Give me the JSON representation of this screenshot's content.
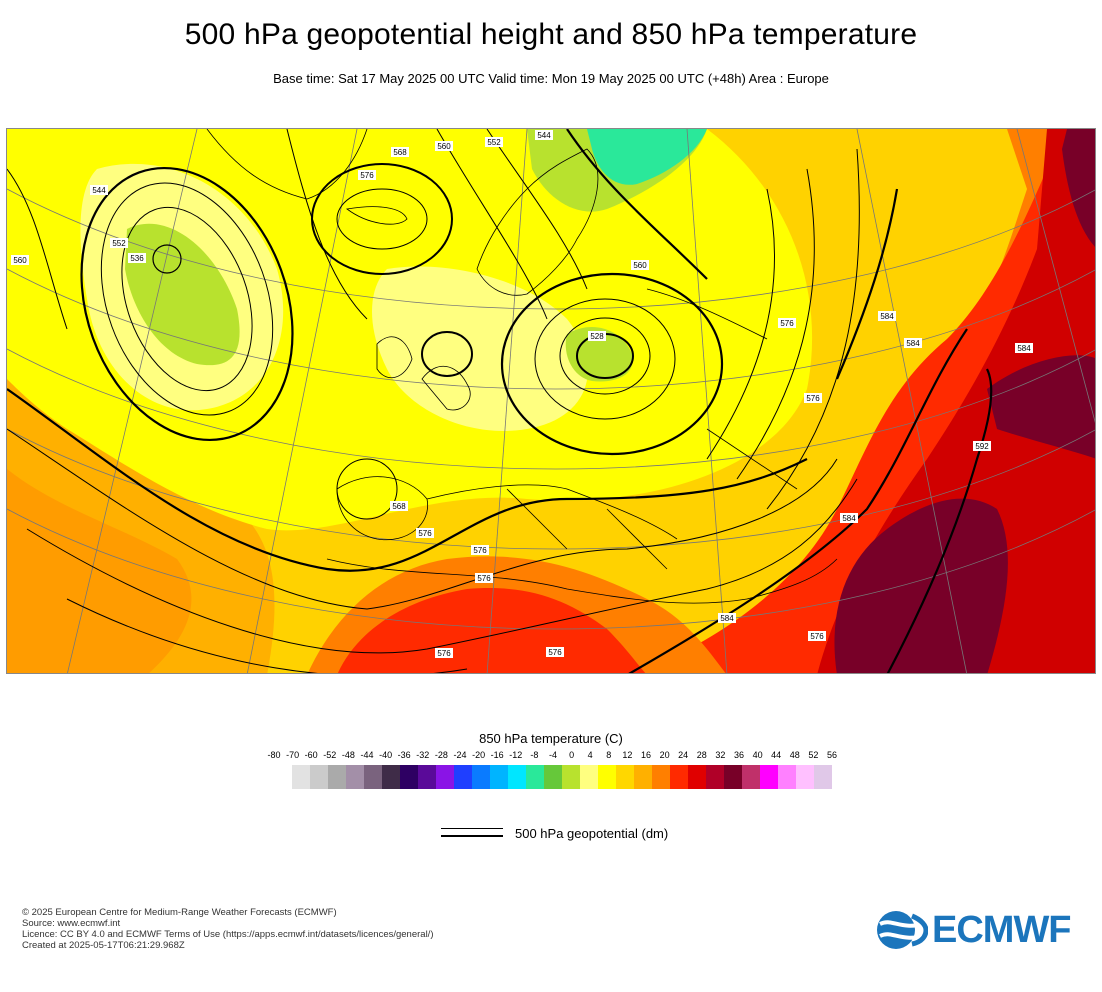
{
  "title": "500 hPa geopotential height and 850 hPa temperature",
  "subtitle": "Base time: Sat 17 May 2025 00 UTC Valid time: Mon 19 May 2025 00 UTC (+48h) Area : Europe",
  "colorbar": {
    "title": "850 hPa temperature (C)",
    "ticks": [
      "-80",
      "-70",
      "-60",
      "-52",
      "-48",
      "-44",
      "-40",
      "-36",
      "-32",
      "-28",
      "-24",
      "-20",
      "-16",
      "-12",
      "-8",
      "-4",
      "0",
      "4",
      "8",
      "12",
      "16",
      "20",
      "24",
      "28",
      "32",
      "36",
      "40",
      "44",
      "48",
      "52",
      "56"
    ],
    "colors": [
      "#e2e2e2",
      "#cbcbcb",
      "#aaaaaa",
      "#a38fa8",
      "#7a637e",
      "#3f2c48",
      "#2e0063",
      "#5a0a99",
      "#8a14e6",
      "#1f3fff",
      "#0a7bff",
      "#00b4ff",
      "#00e6ff",
      "#2ae89a",
      "#66c83a",
      "#b8e22e",
      "#ffff80",
      "#ffff00",
      "#ffd700",
      "#ffb000",
      "#ff7f00",
      "#ff2a00",
      "#e00000",
      "#b00028",
      "#780028",
      "#c0306a",
      "#ff00ff",
      "#ff80ff",
      "#ffc0ff",
      "#e0c8e8"
    ]
  },
  "legend": {
    "label": "500 hPa geopotential (dm)"
  },
  "footer": {
    "lines": [
      "© 2025 European Centre for Medium-Range Weather Forecasts (ECMWF)",
      "Source: www.ecmwf.int",
      "Licence: CC BY 4.0 and ECMWF Terms of Use (https://apps.ecmwf.int/datasets/licences/general/)",
      "Created at 2025-05-17T06:21:29.968Z"
    ]
  },
  "logo": {
    "text": "ECMWF"
  },
  "map_labels": [
    "552",
    "560",
    "568",
    "576",
    "544",
    "536",
    "528",
    "552",
    "544",
    "560",
    "576",
    "568",
    "576",
    "584",
    "576",
    "576",
    "584",
    "592",
    "584",
    "576",
    "576",
    "576",
    "584",
    "576",
    "584",
    "560"
  ]
}
